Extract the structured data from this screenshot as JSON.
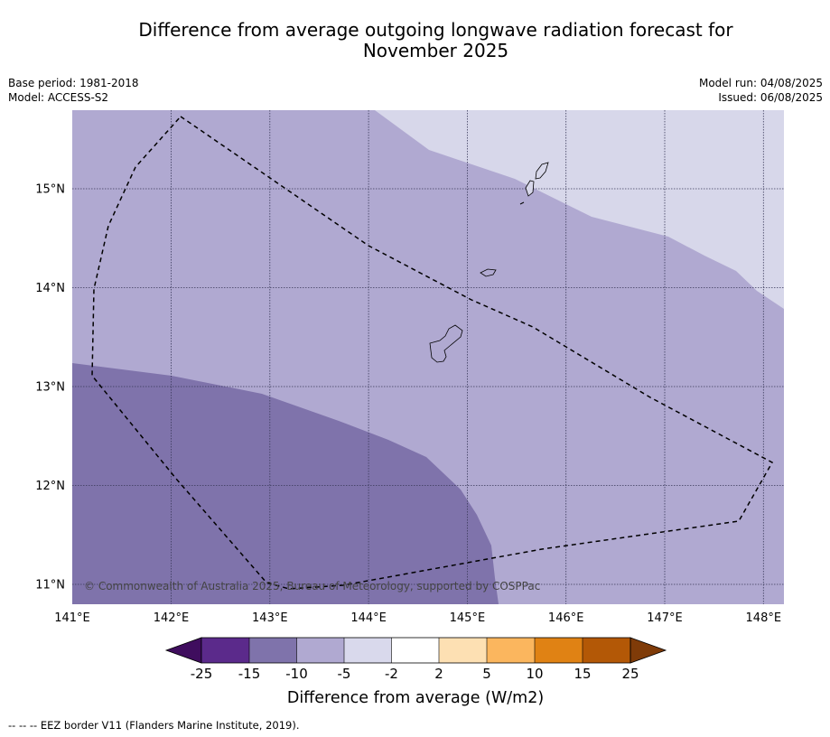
{
  "title_line1": "Difference from average outgoing longwave radiation forecast for",
  "title_line2": "November 2025",
  "meta_left": {
    "base_period": "Base period: 1981-2018",
    "model": "Model: ACCESS-S2"
  },
  "meta_right": {
    "model_run": "Model run: 04/08/2025",
    "issued": "Issued: 06/08/2025"
  },
  "map": {
    "lon_ticks": [
      "141°E",
      "142°E",
      "143°E",
      "144°E",
      "145°E",
      "146°E",
      "147°E",
      "148°E"
    ],
    "lat_ticks": [
      "15°N",
      "14°N",
      "13°N",
      "12°N",
      "11°N"
    ],
    "copyright": "© Commonwealth of Australia 2025, Bureau of Meteorology, supported by COSPPac",
    "colors": {
      "band_light": "#d7d7ea",
      "band_mid": "#b0a9d1",
      "band_dark": "#7f73ab"
    }
  },
  "legend": {
    "labels": [
      "-25",
      "-15",
      "-10",
      "-5",
      "-2",
      "2",
      "5",
      "10",
      "15",
      "25"
    ],
    "colors": [
      "#3f0d5e",
      "#5b2a8b",
      "#7f73ab",
      "#b0a9d1",
      "#d9d9ec",
      "#ffffff",
      "#fde0b3",
      "#fbb65e",
      "#e08214",
      "#b35806",
      "#7f3b08"
    ],
    "title": "Difference from average (W/m2)"
  },
  "footer": "--  --  -- EEZ border V11 (Flanders Marine Institute, 2019)."
}
